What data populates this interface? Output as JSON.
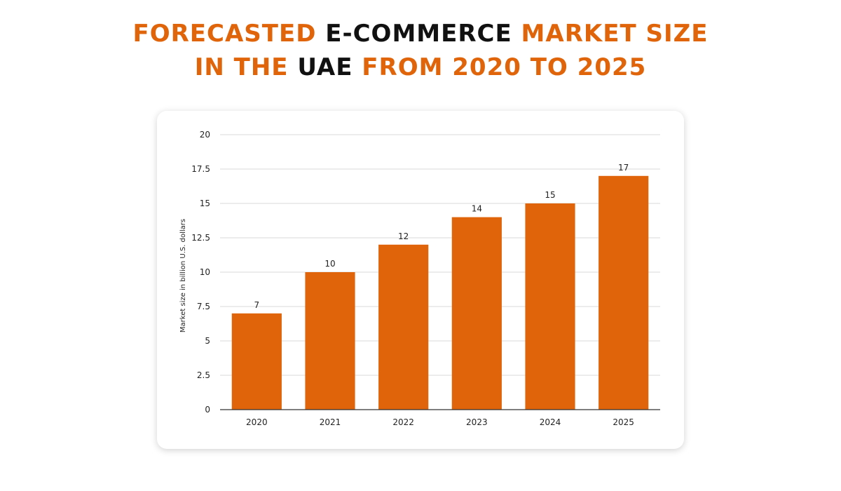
{
  "title": {
    "line1": [
      {
        "text": "FORECASTED ",
        "color": "#E0650A"
      },
      {
        "text": "E-COMMERCE",
        "color": "#111111"
      },
      {
        "text": " MARKET SIZE",
        "color": "#E0650A"
      }
    ],
    "line2": [
      {
        "text": "IN THE ",
        "color": "#E0650A"
      },
      {
        "text": "UAE",
        "color": "#111111"
      },
      {
        "text": " FROM 2020 TO 2025",
        "color": "#E0650A"
      }
    ]
  },
  "chart_data": {
    "type": "bar",
    "categories": [
      "2020",
      "2021",
      "2022",
      "2023",
      "2024",
      "2025"
    ],
    "values": [
      7,
      10,
      12,
      14,
      15,
      17
    ],
    "data_labels": [
      "7",
      "10",
      "12",
      "14",
      "15",
      "17"
    ],
    "ylabel": "Market size in billion U.S. dollars",
    "xlabel": "",
    "ylim": [
      0,
      20
    ],
    "yticks": [
      0,
      2.5,
      5,
      7.5,
      10,
      12.5,
      15,
      17.5,
      20
    ],
    "ytick_labels": [
      "0",
      "2.5",
      "5",
      "7.5",
      "10",
      "12.5",
      "15",
      "17.5",
      "20"
    ],
    "grid": true,
    "legend": "none",
    "bar_color": "#E0650A",
    "grid_color": "#d9d9d9"
  }
}
